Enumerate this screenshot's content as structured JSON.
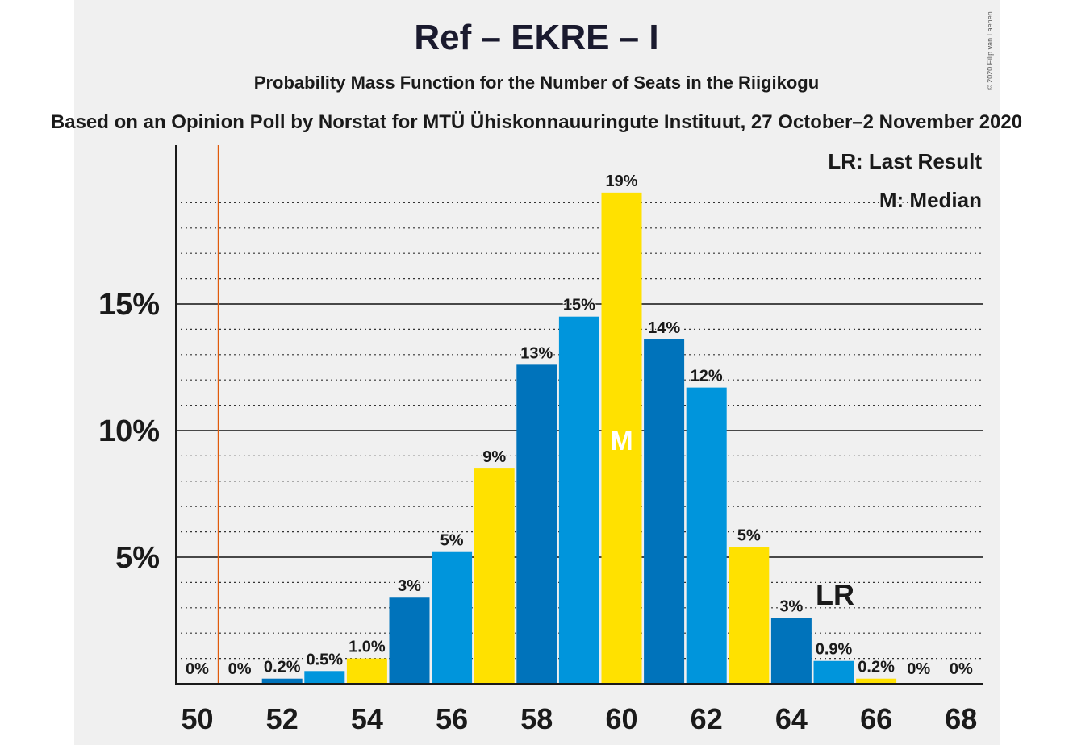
{
  "header": {
    "title": "Ref – EKRE – I",
    "subtitle": "Probability Mass Function for the Number of Seats in the Riigikogu",
    "source": "Based on an Opinion Poll by Norstat for MTÜ Ühiskonnauuringute Instituut, 27 October–2 November 2020",
    "copyright": "© 2020 Filip van Laenen"
  },
  "chart_data": {
    "type": "bar",
    "title": "Ref – EKRE – I",
    "subtitle": "Probability Mass Function for the Number of Seats in the Riigikogu",
    "x": [
      50,
      51,
      52,
      53,
      54,
      55,
      56,
      57,
      58,
      59,
      60,
      61,
      62,
      63,
      64,
      65,
      66,
      67,
      68
    ],
    "values": [
      0,
      0,
      0.2,
      0.5,
      1.0,
      3.4,
      5.2,
      8.5,
      12.6,
      14.5,
      19.4,
      13.6,
      11.7,
      5.4,
      2.6,
      0.9,
      0.2,
      0,
      0
    ],
    "data_labels": [
      "0%",
      "0%",
      "0.2%",
      "0.5%",
      "1.0%",
      "3%",
      "5%",
      "9%",
      "13%",
      "15%",
      "19%",
      "14%",
      "12%",
      "5%",
      "3%",
      "0.9%",
      "0.2%",
      "0%",
      "0%"
    ],
    "x_tick_labels": [
      "50",
      "52",
      "54",
      "56",
      "58",
      "60",
      "62",
      "64",
      "66",
      "68"
    ],
    "y_tick_labels": [
      "5%",
      "10%",
      "15%"
    ],
    "y_ticks": [
      5,
      10,
      15
    ],
    "ylim": [
      0,
      21
    ],
    "xlabel": "",
    "ylabel": "",
    "last_result": 51,
    "last_result_label": "LR",
    "median": 60,
    "median_label": "M",
    "legend": [
      "LR: Last Result",
      "M: Median"
    ],
    "legend_position": "top-right",
    "grid": "dotted minor every 1%, solid major every 5%",
    "colors": {
      "bar_cycle": [
        "#0073bb",
        "#0095dc",
        "#ffe100"
      ],
      "last_result_line": "#e05a0a",
      "axis": "#1a1a1a",
      "median_label": "#ffffff"
    }
  }
}
